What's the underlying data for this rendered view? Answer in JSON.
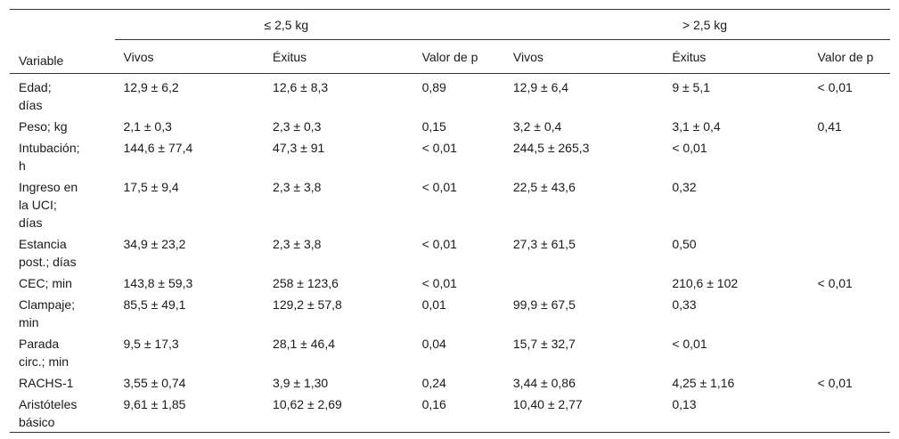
{
  "table": {
    "group_headers": [
      "≤ 2,5 kg",
      "> 2,5 kg"
    ],
    "columns": [
      "Variable",
      "Vivos",
      "Éxitus",
      "Valor de p",
      "Vivos",
      "Éxitus",
      "Valor de p"
    ],
    "rows": [
      [
        "Edad;\ndías",
        "12,9 ± 6,2",
        "12,6 ± 8,3",
        "0,89",
        "12,9 ± 6,4",
        "9 ± 5,1",
        "< 0,01"
      ],
      [
        "Peso; kg",
        "2,1 ± 0,3",
        "2,3 ± 0,3",
        "0,15",
        "3,2 ± 0,4",
        "3,1 ± 0,4",
        "0,41"
      ],
      [
        "Intubación;\nh",
        "144,6 ± 77,4",
        "47,3 ± 91",
        "< 0,01",
        "244,5 ± 265,3",
        "< 0,01",
        ""
      ],
      [
        "Ingreso en\nla UCI;\ndías",
        "17,5 ± 9,4",
        "2,3 ± 3,8",
        "< 0,01",
        "22,5 ± 43,6",
        "0,32",
        ""
      ],
      [
        "Estancia\npost.; días",
        "34,9 ± 23,2",
        "2,3 ± 3,8",
        "< 0,01",
        "27,3 ± 61,5",
        "0,50",
        ""
      ],
      [
        "CEC; min",
        "143,8 ± 59,3",
        "258 ± 123,6",
        "< 0,01",
        "",
        "210,6 ± 102",
        "< 0,01"
      ],
      [
        "Clampaje;\nmin",
        "85,5 ± 49,1",
        "129,2 ± 57,8",
        "0,01",
        "99,9 ± 67,5",
        "0,33",
        ""
      ],
      [
        "Parada\ncirc.; min",
        "9,5 ± 17,3",
        "28,1 ± 46,4",
        "0,04",
        "15,7 ± 32,7",
        "< 0,01",
        ""
      ],
      [
        "RACHS-1",
        "3,55 ± 0,74",
        "3,9 ± 1,30",
        "0,24",
        "3,44 ± 0,86",
        "4,25 ± 1,16",
        "< 0,01"
      ],
      [
        "Aristóteles\nbásico",
        "9,61 ± 1,85",
        "10,62 ± 2,69",
        "0,16",
        "10,40 ± 2,77",
        "0,13",
        ""
      ]
    ]
  }
}
